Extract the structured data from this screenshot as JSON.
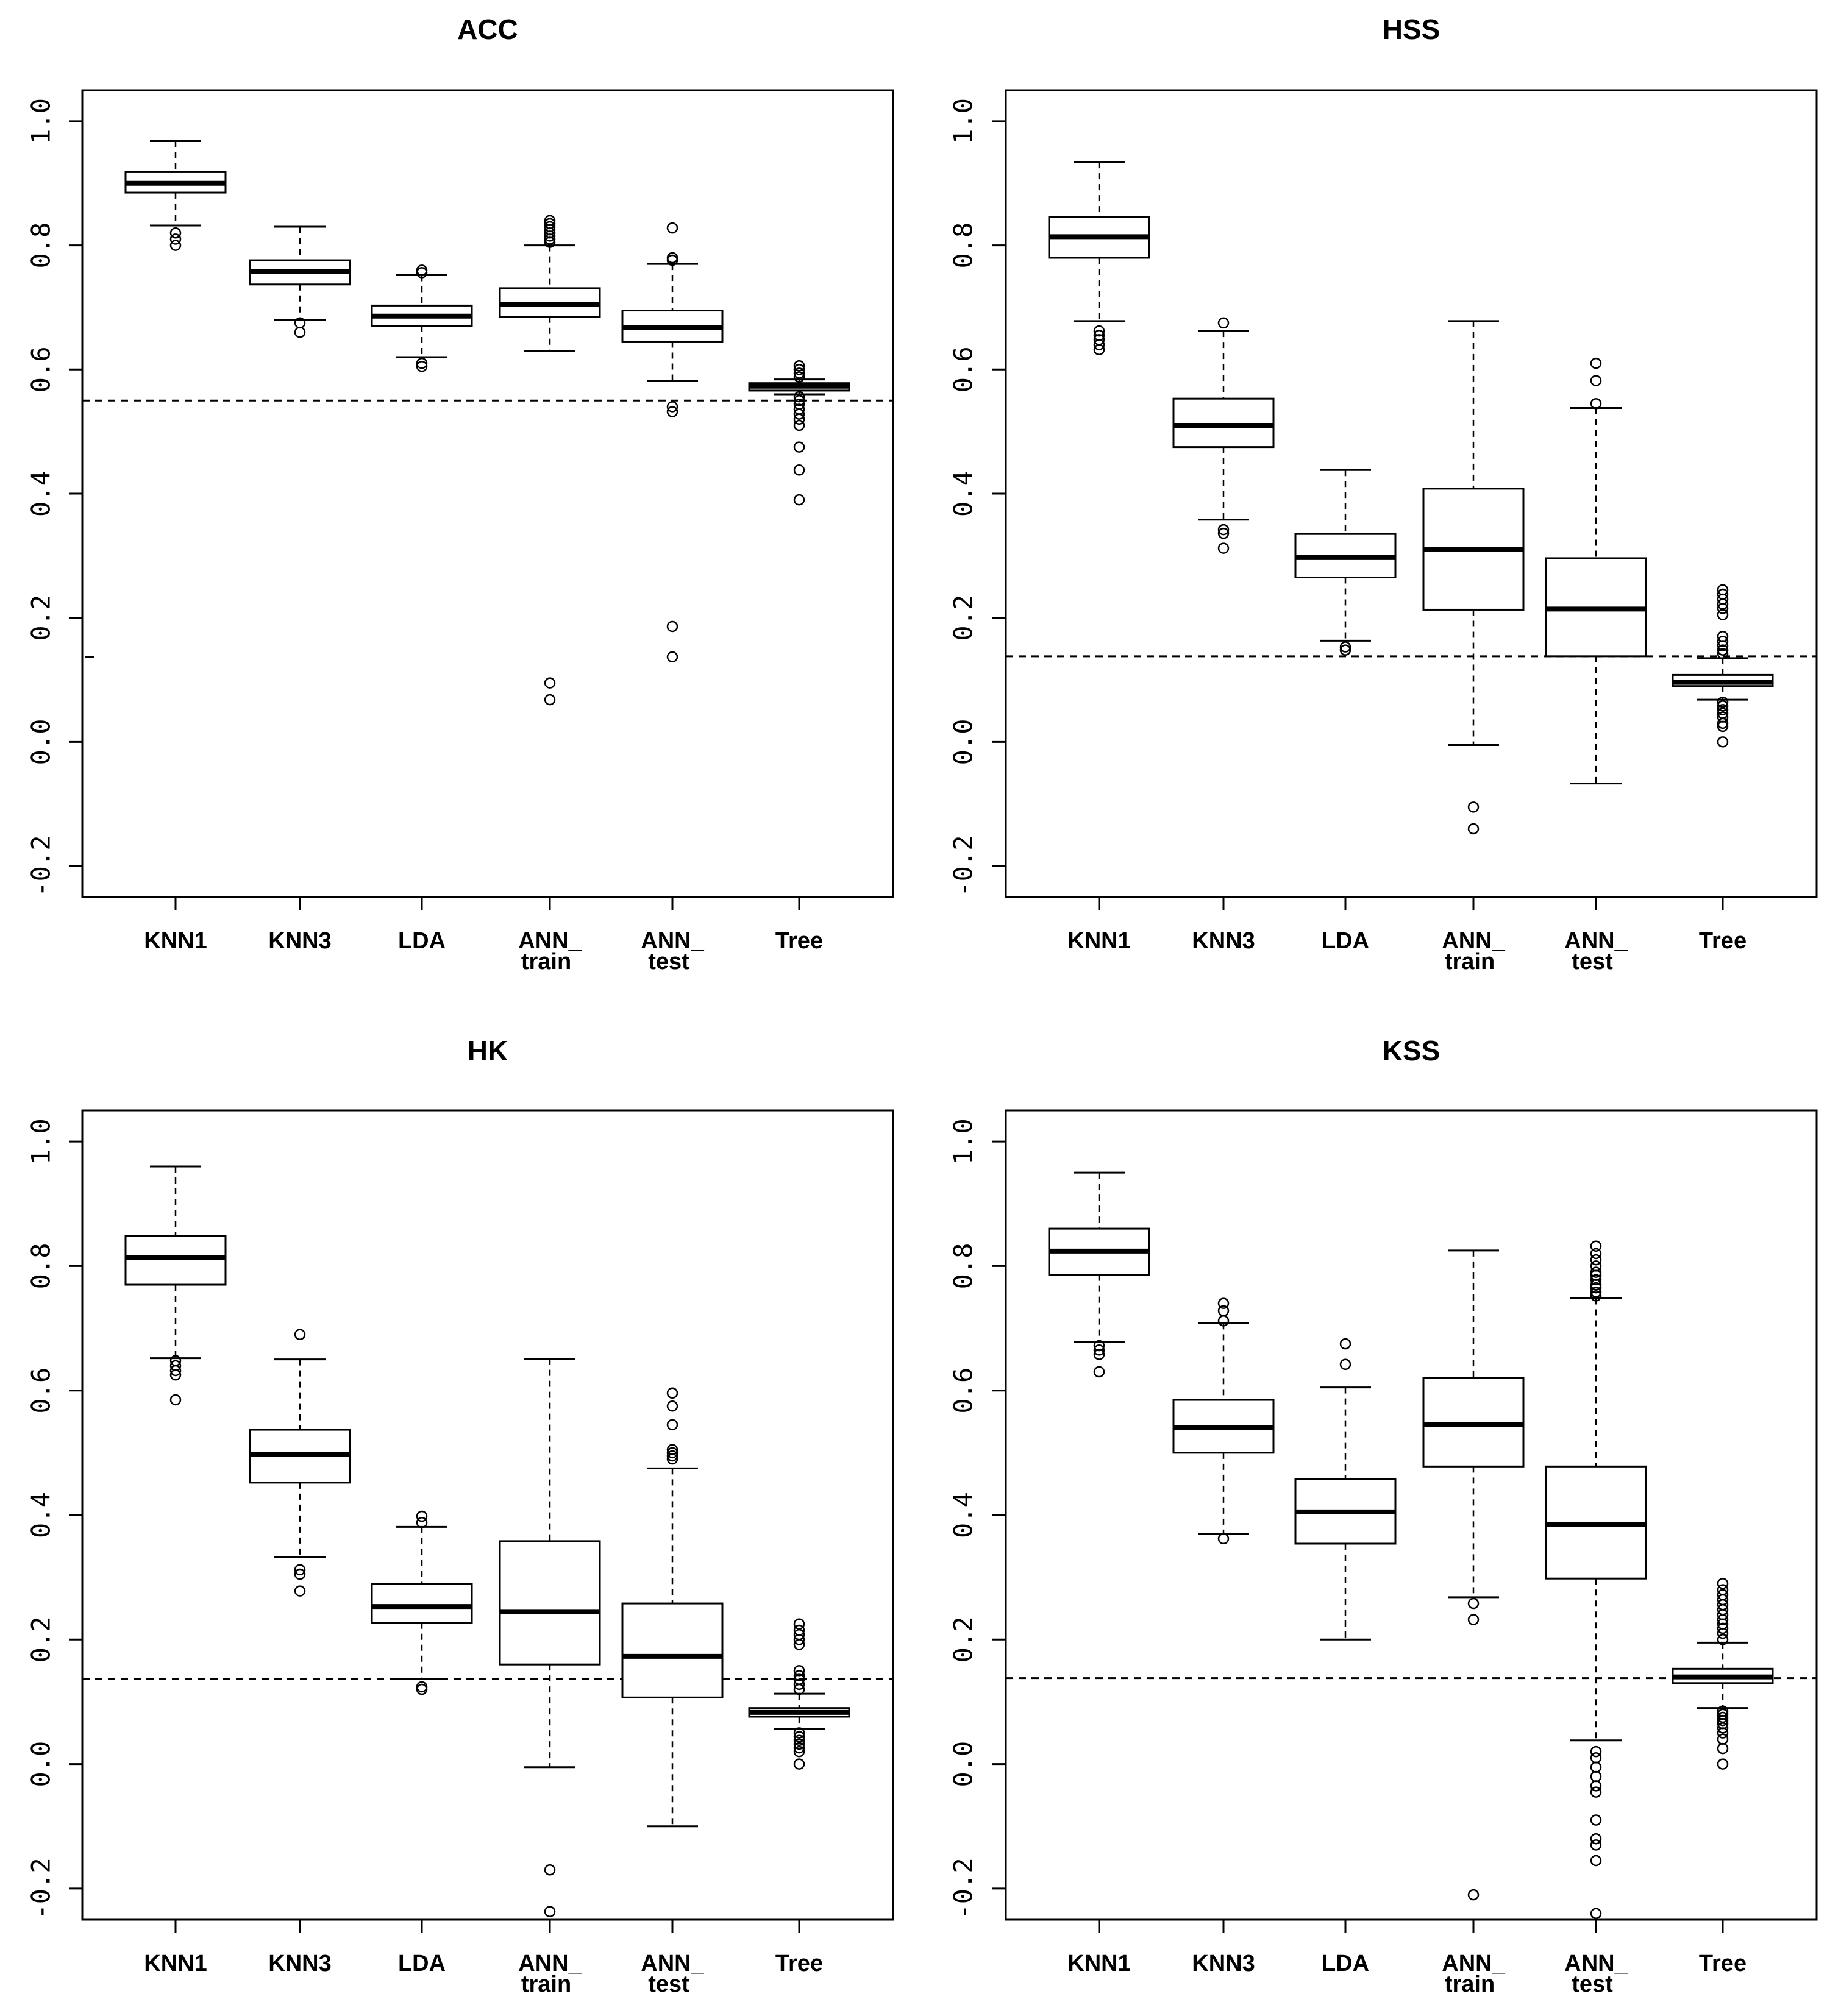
{
  "figure": {
    "background": "#ffffff",
    "ink": "#000000"
  },
  "chart_data": [
    {
      "type": "boxplot",
      "title": "ACC",
      "xlabel": "",
      "ylabel": "",
      "ylim": [
        -0.25,
        1.05
      ],
      "yticks": [
        "-0.2",
        "0.0",
        "0.2",
        "0.4",
        "0.6",
        "0.8",
        "1.0"
      ],
      "ytick_values": [
        -0.2,
        0.0,
        0.2,
        0.4,
        0.6,
        0.8,
        1.0
      ],
      "reference_line": 0.55,
      "reference_tick": 0.137,
      "categories": [
        {
          "label": "KNN1",
          "label2": "",
          "q1": 0.885,
          "median": 0.9,
          "q3": 0.918,
          "whisker_low": 0.832,
          "whisker_high": 0.968,
          "outliers": [
            0.82,
            0.81,
            0.8
          ]
        },
        {
          "label": "KNN3",
          "label2": "",
          "q1": 0.737,
          "median": 0.758,
          "q3": 0.776,
          "whisker_low": 0.68,
          "whisker_high": 0.83,
          "outliers": [
            0.675,
            0.66
          ]
        },
        {
          "label": "LDA",
          "label2": "",
          "q1": 0.67,
          "median": 0.686,
          "q3": 0.703,
          "whisker_low": 0.62,
          "whisker_high": 0.752,
          "outliers": [
            0.76,
            0.756,
            0.61,
            0.605
          ]
        },
        {
          "label": "ANN_",
          "label2": "train",
          "q1": 0.685,
          "median": 0.705,
          "q3": 0.731,
          "whisker_low": 0.63,
          "whisker_high": 0.8,
          "outliers": [
            0.84,
            0.835,
            0.83,
            0.825,
            0.82,
            0.815,
            0.81,
            0.805,
            0.095,
            0.068
          ]
        },
        {
          "label": "ANN_",
          "label2": "test",
          "q1": 0.645,
          "median": 0.668,
          "q3": 0.695,
          "whisker_low": 0.582,
          "whisker_high": 0.77,
          "outliers": [
            0.828,
            0.78,
            0.776,
            0.54,
            0.532,
            0.186,
            0.137
          ]
        },
        {
          "label": "Tree",
          "label2": "",
          "q1": 0.566,
          "median": 0.573,
          "q3": 0.578,
          "whisker_low": 0.56,
          "whisker_high": 0.584,
          "outliers": [
            0.606,
            0.6,
            0.594,
            0.588,
            0.556,
            0.55,
            0.544,
            0.536,
            0.528,
            0.52,
            0.51,
            0.475,
            0.438,
            0.39
          ]
        }
      ]
    },
    {
      "type": "boxplot",
      "title": "HSS",
      "xlabel": "",
      "ylabel": "",
      "ylim": [
        -0.25,
        1.05
      ],
      "yticks": [
        "-0.2",
        "0.0",
        "0.2",
        "0.4",
        "0.6",
        "0.8",
        "1.0"
      ],
      "ytick_values": [
        -0.2,
        0.0,
        0.2,
        0.4,
        0.6,
        0.8,
        1.0
      ],
      "reference_line": 0.138,
      "reference_tick": null,
      "categories": [
        {
          "label": "KNN1",
          "label2": "",
          "q1": 0.78,
          "median": 0.814,
          "q3": 0.846,
          "whisker_low": 0.678,
          "whisker_high": 0.934,
          "outliers": [
            0.662,
            0.655,
            0.648,
            0.64,
            0.632
          ]
        },
        {
          "label": "KNN3",
          "label2": "",
          "q1": 0.475,
          "median": 0.51,
          "q3": 0.553,
          "whisker_low": 0.358,
          "whisker_high": 0.662,
          "outliers": [
            0.675,
            0.342,
            0.336,
            0.312
          ]
        },
        {
          "label": "LDA",
          "label2": "",
          "q1": 0.265,
          "median": 0.297,
          "q3": 0.335,
          "whisker_low": 0.163,
          "whisker_high": 0.438,
          "outliers": [
            0.153,
            0.148
          ]
        },
        {
          "label": "ANN_",
          "label2": "train",
          "q1": 0.213,
          "median": 0.31,
          "q3": 0.408,
          "whisker_low": -0.005,
          "whisker_high": 0.678,
          "outliers": [
            -0.105,
            -0.14
          ]
        },
        {
          "label": "ANN_",
          "label2": "test",
          "q1": 0.138,
          "median": 0.214,
          "q3": 0.296,
          "whisker_low": -0.067,
          "whisker_high": 0.538,
          "outliers": [
            0.61,
            0.582,
            0.545
          ]
        },
        {
          "label": "Tree",
          "label2": "",
          "q1": 0.09,
          "median": 0.096,
          "q3": 0.108,
          "whisker_low": 0.068,
          "whisker_high": 0.135,
          "outliers": [
            0.245,
            0.238,
            0.23,
            0.222,
            0.215,
            0.205,
            0.17,
            0.162,
            0.155,
            0.148,
            0.142,
            0.064,
            0.058,
            0.052,
            0.046,
            0.04,
            0.03,
            0.025,
            0.0
          ]
        }
      ]
    },
    {
      "type": "boxplot",
      "title": "HK",
      "xlabel": "",
      "ylabel": "",
      "ylim": [
        -0.25,
        1.05
      ],
      "yticks": [
        "-0.2",
        "0.0",
        "0.2",
        "0.4",
        "0.6",
        "0.8",
        "1.0"
      ],
      "ytick_values": [
        -0.2,
        0.0,
        0.2,
        0.4,
        0.6,
        0.8,
        1.0
      ],
      "reference_line": 0.137,
      "reference_tick": null,
      "categories": [
        {
          "label": "KNN1",
          "label2": "",
          "q1": 0.77,
          "median": 0.814,
          "q3": 0.848,
          "whisker_low": 0.652,
          "whisker_high": 0.96,
          "outliers": [
            0.648,
            0.64,
            0.632,
            0.625,
            0.585
          ]
        },
        {
          "label": "KNN3",
          "label2": "",
          "q1": 0.452,
          "median": 0.497,
          "q3": 0.537,
          "whisker_low": 0.333,
          "whisker_high": 0.65,
          "outliers": [
            0.69,
            0.312,
            0.305,
            0.278
          ]
        },
        {
          "label": "LDA",
          "label2": "",
          "q1": 0.227,
          "median": 0.253,
          "q3": 0.289,
          "whisker_low": 0.137,
          "whisker_high": 0.381,
          "outliers": [
            0.398,
            0.388,
            0.124,
            0.12
          ]
        },
        {
          "label": "ANN_",
          "label2": "train",
          "q1": 0.16,
          "median": 0.245,
          "q3": 0.358,
          "whisker_low": -0.005,
          "whisker_high": 0.651,
          "outliers": [
            -0.17,
            -0.237
          ]
        },
        {
          "label": "ANN_",
          "label2": "test",
          "q1": 0.107,
          "median": 0.173,
          "q3": 0.258,
          "whisker_low": -0.1,
          "whisker_high": 0.475,
          "outliers": [
            0.596,
            0.575,
            0.545,
            0.505,
            0.5,
            0.495,
            0.49
          ]
        },
        {
          "label": "Tree",
          "label2": "",
          "q1": 0.076,
          "median": 0.083,
          "q3": 0.09,
          "whisker_low": 0.056,
          "whisker_high": 0.113,
          "outliers": [
            0.225,
            0.215,
            0.208,
            0.2,
            0.192,
            0.15,
            0.142,
            0.136,
            0.128,
            0.12,
            0.05,
            0.044,
            0.038,
            0.032,
            0.026,
            0.02,
            0.0
          ]
        }
      ]
    },
    {
      "type": "boxplot",
      "title": "KSS",
      "xlabel": "",
      "ylabel": "",
      "ylim": [
        -0.25,
        1.05
      ],
      "yticks": [
        "-0.2",
        "0.0",
        "0.2",
        "0.4",
        "0.6",
        "0.8",
        "1.0"
      ],
      "ytick_values": [
        -0.2,
        0.0,
        0.2,
        0.4,
        0.6,
        0.8,
        1.0
      ],
      "reference_line": 0.138,
      "reference_tick": null,
      "categories": [
        {
          "label": "KNN1",
          "label2": "",
          "q1": 0.786,
          "median": 0.824,
          "q3": 0.86,
          "whisker_low": 0.678,
          "whisker_high": 0.95,
          "outliers": [
            0.672,
            0.665,
            0.658,
            0.63
          ]
        },
        {
          "label": "KNN3",
          "label2": "",
          "q1": 0.5,
          "median": 0.541,
          "q3": 0.585,
          "whisker_low": 0.37,
          "whisker_high": 0.708,
          "outliers": [
            0.74,
            0.728,
            0.712,
            0.362
          ]
        },
        {
          "label": "LDA",
          "label2": "",
          "q1": 0.354,
          "median": 0.405,
          "q3": 0.458,
          "whisker_low": 0.2,
          "whisker_high": 0.605,
          "outliers": [
            0.675,
            0.642
          ]
        },
        {
          "label": "ANN_",
          "label2": "train",
          "q1": 0.478,
          "median": 0.545,
          "q3": 0.62,
          "whisker_low": 0.268,
          "whisker_high": 0.825,
          "outliers": [
            0.258,
            0.232,
            -0.21
          ]
        },
        {
          "label": "ANN_",
          "label2": "test",
          "q1": 0.298,
          "median": 0.385,
          "q3": 0.478,
          "whisker_low": 0.038,
          "whisker_high": 0.748,
          "outliers": [
            0.832,
            0.82,
            0.81,
            0.8,
            0.79,
            0.785,
            0.778,
            0.77,
            0.765,
            0.758,
            0.752,
            0.02,
            0.01,
            -0.005,
            -0.02,
            -0.035,
            -0.045,
            -0.09,
            -0.12,
            -0.13,
            -0.155,
            -0.24
          ]
        },
        {
          "label": "Tree",
          "label2": "",
          "q1": 0.13,
          "median": 0.14,
          "q3": 0.153,
          "whisker_low": 0.09,
          "whisker_high": 0.195,
          "outliers": [
            0.29,
            0.28,
            0.272,
            0.264,
            0.256,
            0.248,
            0.24,
            0.232,
            0.225,
            0.218,
            0.21,
            0.2,
            0.085,
            0.08,
            0.075,
            0.07,
            0.065,
            0.058,
            0.05,
            0.04,
            0.025,
            0.0
          ]
        }
      ]
    }
  ]
}
